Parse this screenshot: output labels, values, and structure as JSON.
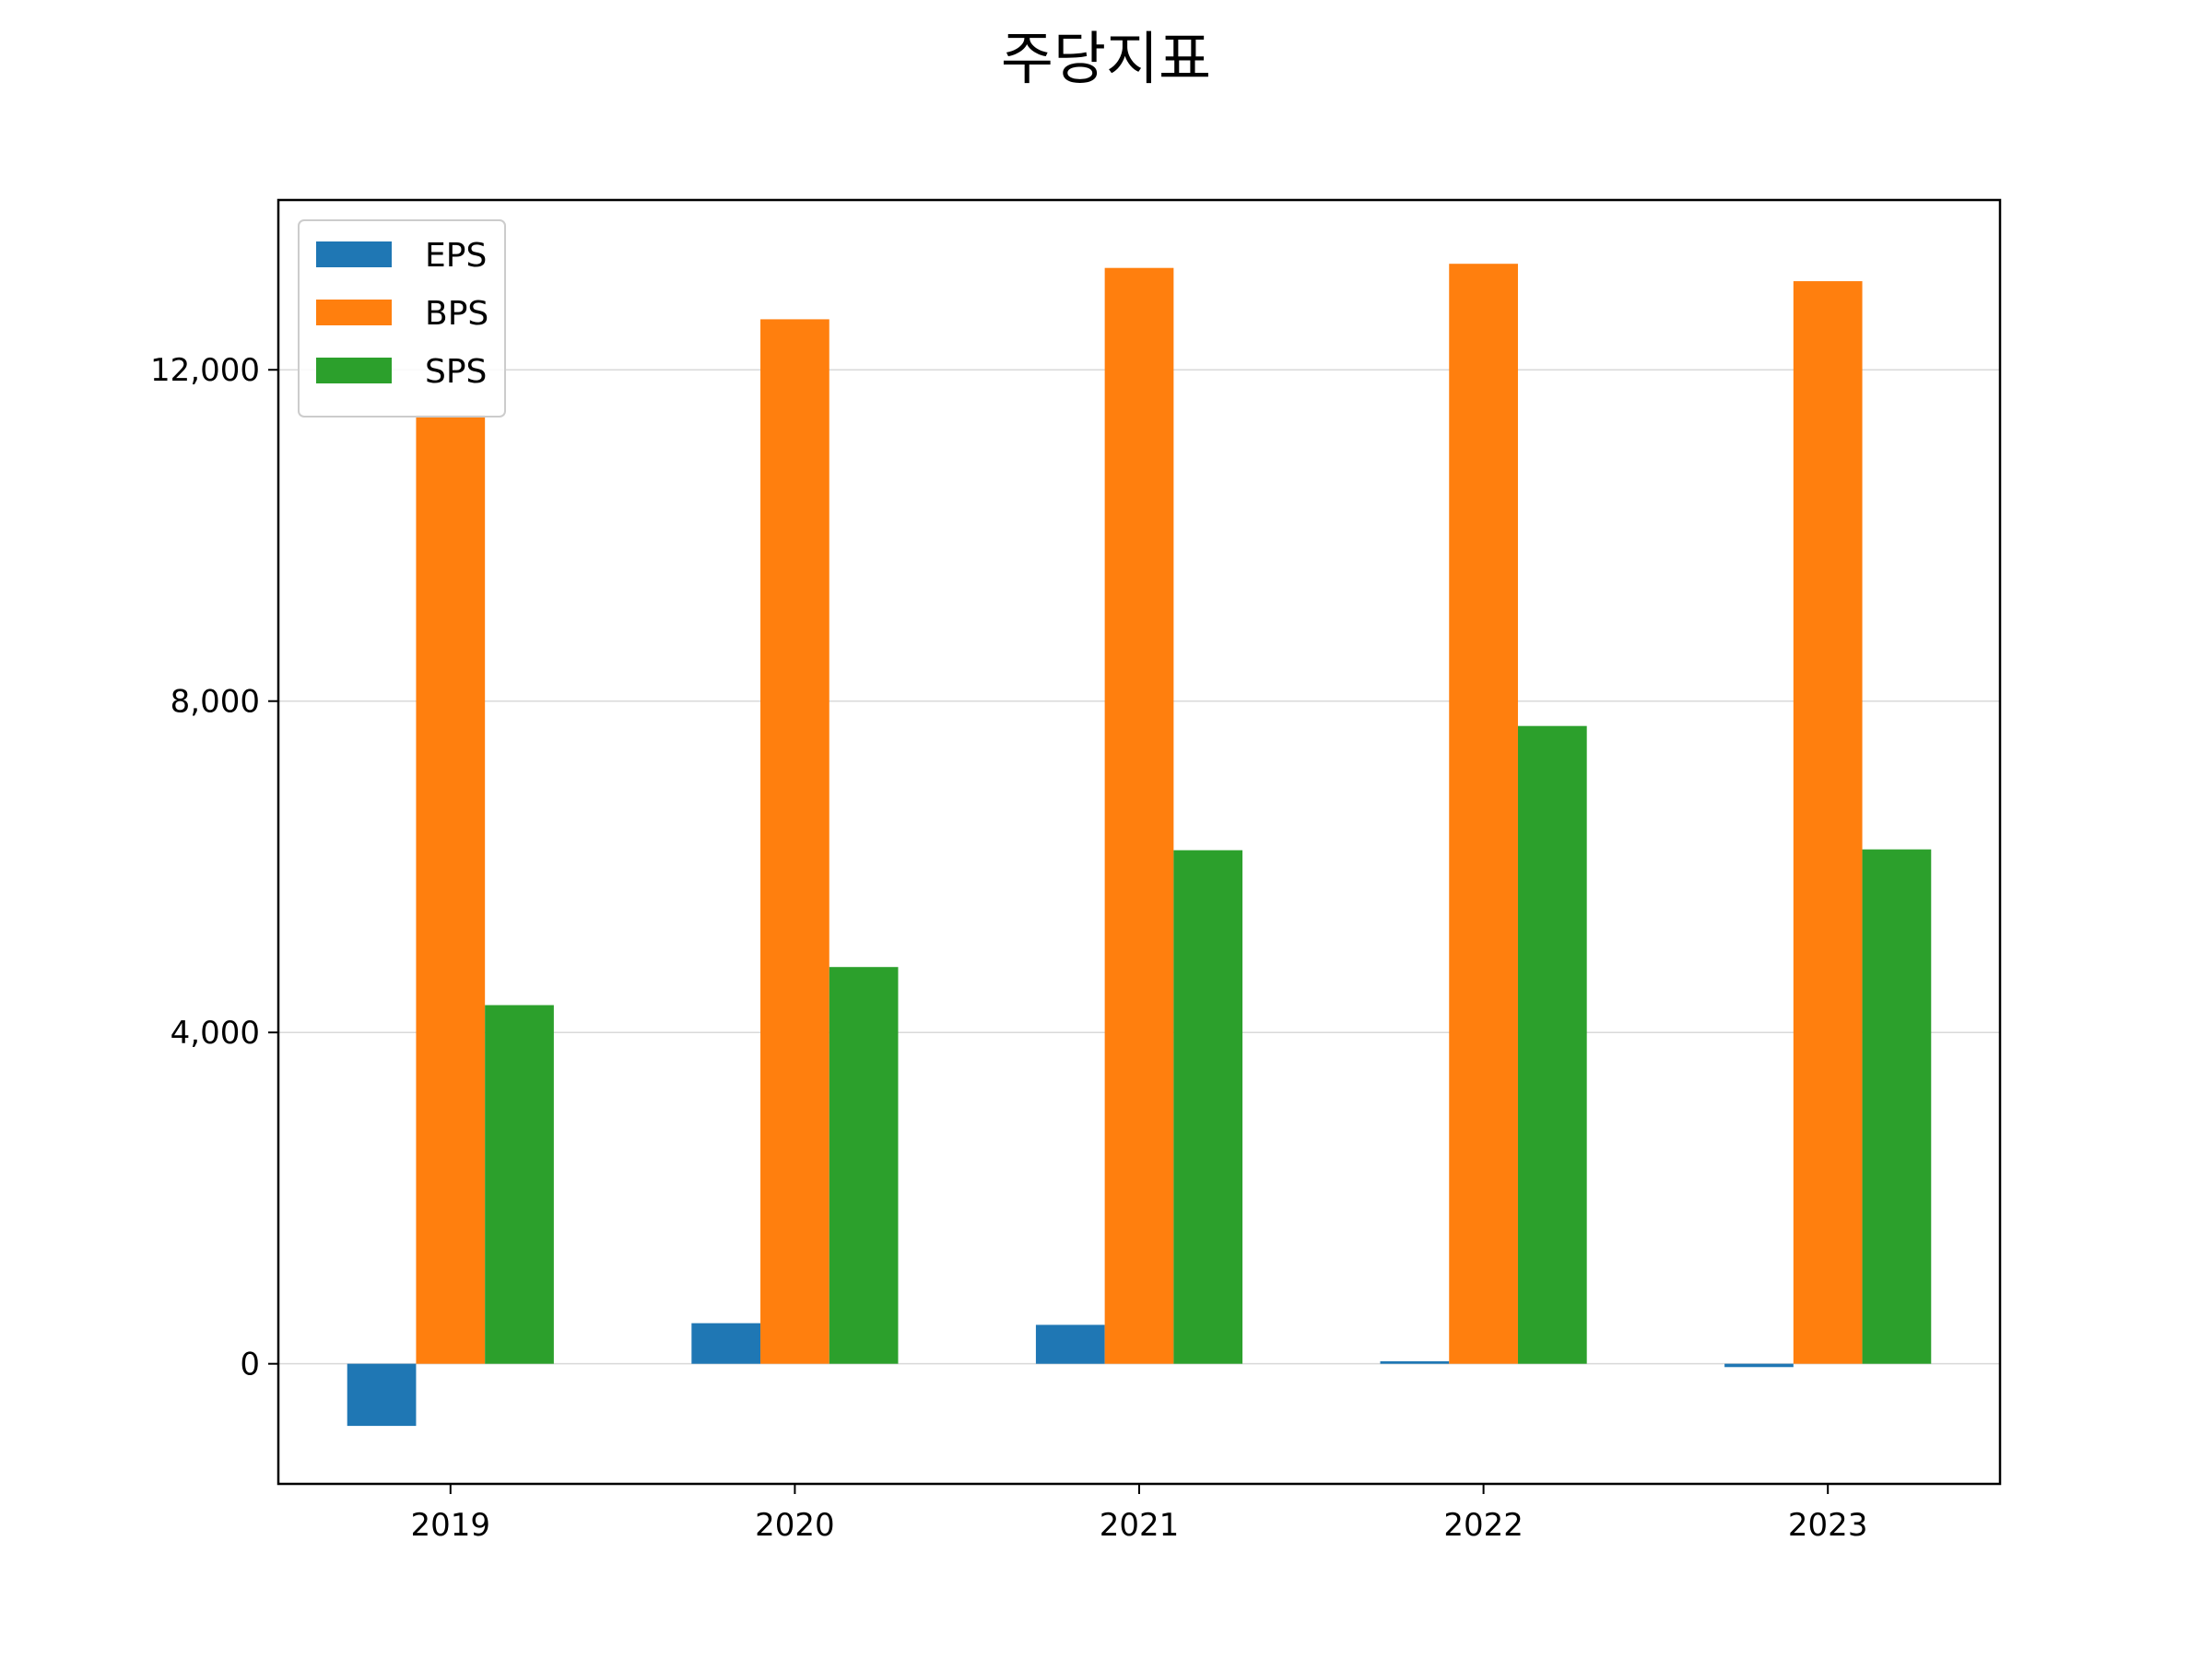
{
  "chart_data": {
    "type": "bar",
    "title": "주당지표",
    "xlabel": "",
    "ylabel": "",
    "categories": [
      "2019",
      "2020",
      "2021",
      "2022",
      "2023"
    ],
    "series": [
      {
        "name": "EPS",
        "color": "#1f77b4",
        "values": [
          -750,
          490,
          470,
          30,
          -40
        ]
      },
      {
        "name": "BPS",
        "color": "#ff7f0e",
        "values": [
          11450,
          12610,
          13230,
          13280,
          13070
        ]
      },
      {
        "name": "SPS",
        "color": "#2ca02c",
        "values": [
          4330,
          4790,
          6200,
          7700,
          6210
        ]
      }
    ],
    "ylim": [
      -1450,
      14050
    ],
    "yticks": [
      0,
      4000,
      8000,
      12000
    ],
    "ytick_labels": [
      "0",
      "4,000",
      "8,000",
      "12,000"
    ],
    "grid": "horizontal",
    "legend": "top-left"
  }
}
